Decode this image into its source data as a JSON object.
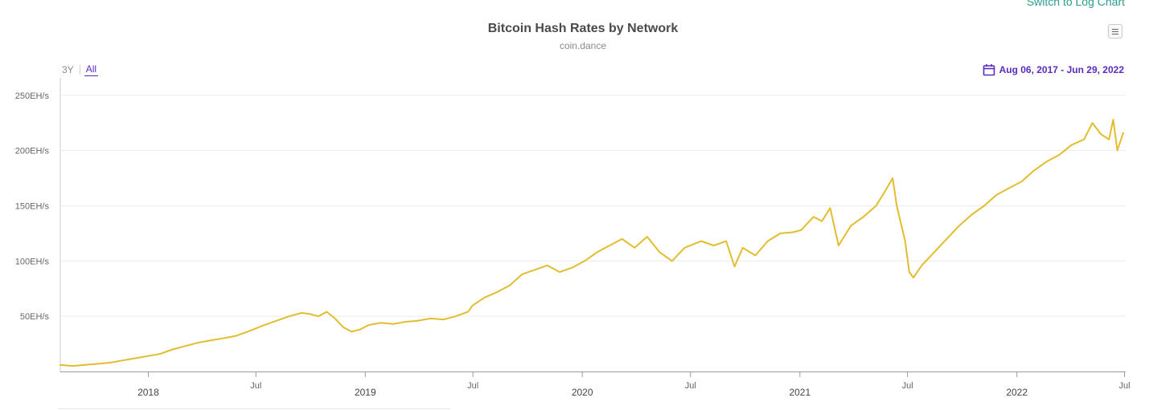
{
  "controls": {
    "log_link": "Switch to Log Chart",
    "range_buttons": [
      "3Y",
      "All"
    ],
    "active_range": "All",
    "date_range": "Aug 06, 2017 - Jun 29, 2022"
  },
  "colors": {
    "line": "#e1bd2f",
    "accent": "#5b2bbf",
    "link": "#2a9d8f"
  },
  "chart_data": {
    "type": "line",
    "title": "Bitcoin Hash Rates by Network",
    "subtitle": "coin.dance",
    "legend": "none",
    "grid": true,
    "x_range": [
      "2017-08-06",
      "2022-07-03"
    ],
    "ylim": [
      0,
      260
    ],
    "y_ticks": [
      {
        "value": 50,
        "label": "50EH/s"
      },
      {
        "value": 100,
        "label": "100EH/s"
      },
      {
        "value": 150,
        "label": "150EH/s"
      },
      {
        "value": 200,
        "label": "200EH/s"
      },
      {
        "value": 250,
        "label": "250EH/s"
      }
    ],
    "x_ticks": [
      {
        "date": "2018-01-01",
        "label": "2018",
        "major": true
      },
      {
        "date": "2018-07-01",
        "label": "Jul",
        "major": false
      },
      {
        "date": "2019-01-01",
        "label": "2019",
        "major": true
      },
      {
        "date": "2019-07-01",
        "label": "Jul",
        "major": false
      },
      {
        "date": "2020-01-01",
        "label": "2020",
        "major": true
      },
      {
        "date": "2020-07-01",
        "label": "Jul",
        "major": false
      },
      {
        "date": "2021-01-01",
        "label": "2021",
        "major": true
      },
      {
        "date": "2021-07-01",
        "label": "Jul",
        "major": false
      },
      {
        "date": "2022-01-01",
        "label": "2022",
        "major": true
      },
      {
        "date": "2022-07-01",
        "label": "Jul",
        "major": false
      }
    ],
    "series": [
      {
        "y_unit": "EH/s",
        "points": [
          [
            "2017-08-06",
            6
          ],
          [
            "2017-08-27",
            5
          ],
          [
            "2017-09-17",
            6
          ],
          [
            "2017-10-08",
            7
          ],
          [
            "2017-10-29",
            8
          ],
          [
            "2017-11-19",
            10
          ],
          [
            "2017-12-10",
            12
          ],
          [
            "2018-01-01",
            14
          ],
          [
            "2018-01-21",
            16
          ],
          [
            "2018-02-11",
            20
          ],
          [
            "2018-03-04",
            23
          ],
          [
            "2018-03-25",
            26
          ],
          [
            "2018-04-15",
            28
          ],
          [
            "2018-05-06",
            30
          ],
          [
            "2018-05-27",
            32
          ],
          [
            "2018-06-17",
            36
          ],
          [
            "2018-07-01",
            39
          ],
          [
            "2018-07-15",
            42
          ],
          [
            "2018-08-05",
            46
          ],
          [
            "2018-08-26",
            50
          ],
          [
            "2018-09-16",
            53
          ],
          [
            "2018-09-30",
            52
          ],
          [
            "2018-10-14",
            50
          ],
          [
            "2018-10-28",
            54
          ],
          [
            "2018-11-11",
            48
          ],
          [
            "2018-11-25",
            40
          ],
          [
            "2018-12-09",
            36
          ],
          [
            "2018-12-23",
            38
          ],
          [
            "2019-01-06",
            42
          ],
          [
            "2019-01-27",
            44
          ],
          [
            "2019-02-17",
            43
          ],
          [
            "2019-03-10",
            45
          ],
          [
            "2019-03-31",
            46
          ],
          [
            "2019-04-21",
            48
          ],
          [
            "2019-05-12",
            47
          ],
          [
            "2019-06-02",
            50
          ],
          [
            "2019-06-23",
            54
          ],
          [
            "2019-07-01",
            60
          ],
          [
            "2019-07-21",
            67
          ],
          [
            "2019-08-11",
            72
          ],
          [
            "2019-09-01",
            78
          ],
          [
            "2019-09-22",
            88
          ],
          [
            "2019-10-13",
            92
          ],
          [
            "2019-11-03",
            96
          ],
          [
            "2019-11-24",
            90
          ],
          [
            "2019-12-15",
            94
          ],
          [
            "2020-01-05",
            100
          ],
          [
            "2020-01-26",
            108
          ],
          [
            "2020-02-16",
            114
          ],
          [
            "2020-03-08",
            120
          ],
          [
            "2020-03-29",
            112
          ],
          [
            "2020-04-19",
            122
          ],
          [
            "2020-05-10",
            108
          ],
          [
            "2020-05-31",
            100
          ],
          [
            "2020-06-21",
            112
          ],
          [
            "2020-07-05",
            115
          ],
          [
            "2020-07-19",
            118
          ],
          [
            "2020-08-09",
            114
          ],
          [
            "2020-08-30",
            118
          ],
          [
            "2020-09-13",
            95
          ],
          [
            "2020-09-27",
            112
          ],
          [
            "2020-10-18",
            105
          ],
          [
            "2020-11-08",
            118
          ],
          [
            "2020-11-29",
            125
          ],
          [
            "2020-12-20",
            126
          ],
          [
            "2021-01-03",
            128
          ],
          [
            "2021-01-24",
            140
          ],
          [
            "2021-02-07",
            136
          ],
          [
            "2021-02-21",
            148
          ],
          [
            "2021-03-07",
            114
          ],
          [
            "2021-03-28",
            132
          ],
          [
            "2021-04-18",
            140
          ],
          [
            "2021-05-09",
            150
          ],
          [
            "2021-05-23",
            162
          ],
          [
            "2021-06-06",
            175
          ],
          [
            "2021-06-13",
            150
          ],
          [
            "2021-06-27",
            118
          ],
          [
            "2021-07-04",
            90
          ],
          [
            "2021-07-11",
            85
          ],
          [
            "2021-07-25",
            96
          ],
          [
            "2021-08-15",
            108
          ],
          [
            "2021-09-05",
            120
          ],
          [
            "2021-09-26",
            132
          ],
          [
            "2021-10-17",
            142
          ],
          [
            "2021-11-07",
            150
          ],
          [
            "2021-11-28",
            160
          ],
          [
            "2021-12-19",
            166
          ],
          [
            "2022-01-09",
            172
          ],
          [
            "2022-01-30",
            182
          ],
          [
            "2022-02-20",
            190
          ],
          [
            "2022-03-13",
            196
          ],
          [
            "2022-04-03",
            205
          ],
          [
            "2022-04-24",
            210
          ],
          [
            "2022-05-08",
            225
          ],
          [
            "2022-05-22",
            215
          ],
          [
            "2022-06-05",
            210
          ],
          [
            "2022-06-12",
            228
          ],
          [
            "2022-06-19",
            200
          ],
          [
            "2022-06-29",
            216
          ]
        ]
      }
    ]
  }
}
